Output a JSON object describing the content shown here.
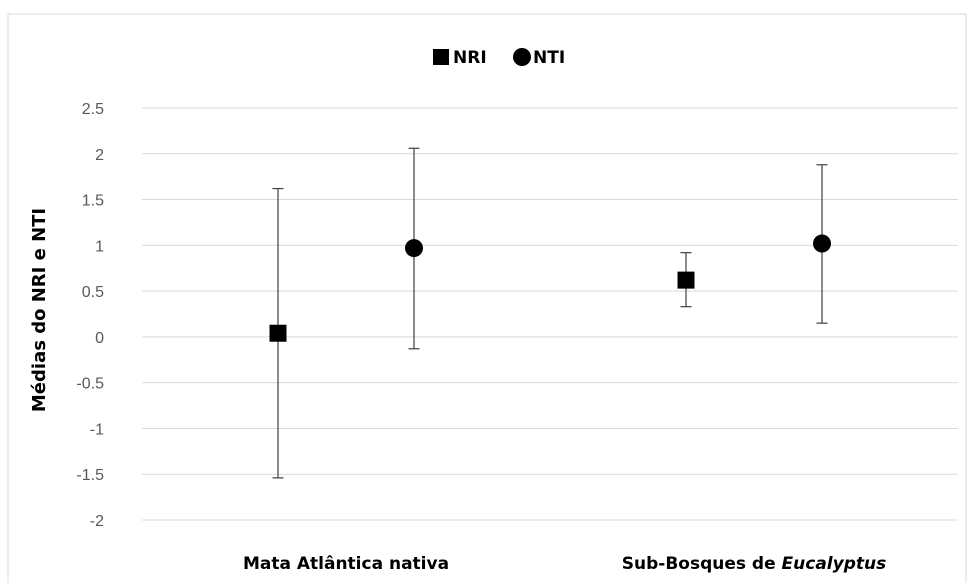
{
  "chart_data": {
    "type": "scatter",
    "ylabel": "Médias  do  NRI  e  NTI",
    "xlabel": "",
    "ylim": [
      -2,
      2.5
    ],
    "ytick_step": 0.5,
    "grid": true,
    "legend_position": "top-center",
    "categories": [
      {
        "parts": [
          {
            "text": "Mata Atlântica nativa",
            "italic": false
          }
        ]
      },
      {
        "parts": [
          {
            "text": "Sub-Bosques de ",
            "italic": false
          },
          {
            "text": "Eucalyptus",
            "italic": true
          }
        ]
      }
    ],
    "series": [
      {
        "name": "NRI",
        "marker": "square",
        "color": "#000000",
        "values": [
          0.04,
          0.62
        ],
        "err_low": [
          -1.54,
          0.33
        ],
        "err_high": [
          1.62,
          0.92
        ]
      },
      {
        "name": "NTI",
        "marker": "circle",
        "color": "#000000",
        "values": [
          0.97,
          1.02
        ],
        "err_low": [
          -0.13,
          0.15
        ],
        "err_high": [
          2.06,
          1.88
        ]
      }
    ]
  }
}
